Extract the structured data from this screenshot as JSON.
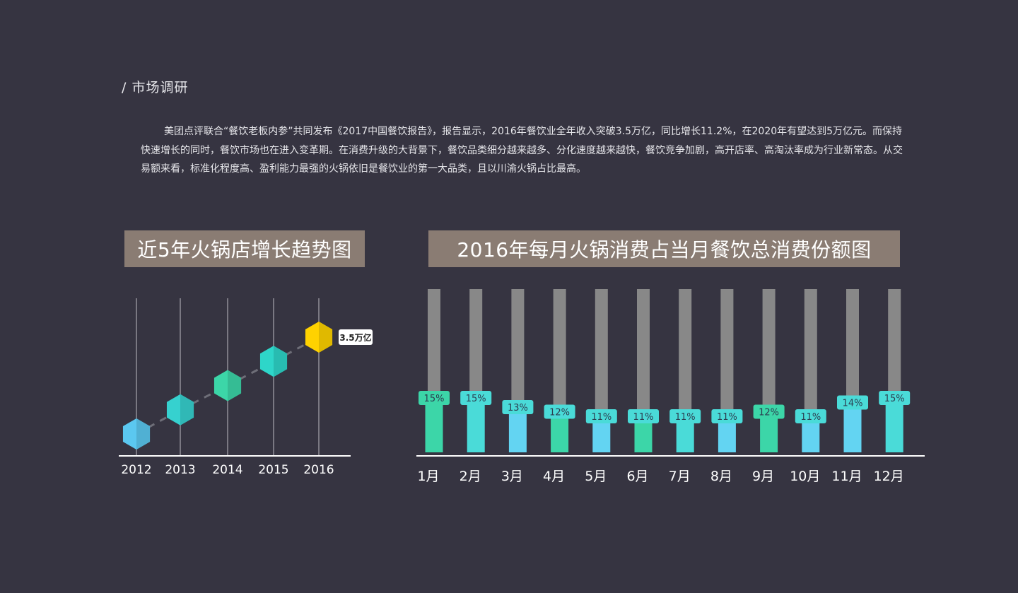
{
  "section_title": "/ 市场调研",
  "intro_text": "美团点评联合“餐饮老板内参”共同发布《2017中国餐饮报告》，报告显示，2016年餐饮业全年收入突破3.5万亿，同比增长11.2%，在2020年有望达到5万亿元。而保持快速增长的同时，餐饮市场也在进入变革期。在消费升级的大背景下，餐饮品类细分越来越多、分化速度越来越快，餐饮竞争加剧，高开店率、高淘汰率成为行业新常态。从交易额来看，标准化程度高、盈利能力最强的火锅依旧是餐饮业的第一大品类，且以川渝火锅占比最高。",
  "left_chart_title": "近5年火锅店增长趋势图",
  "right_chart_title": "2016年每月火锅消费占当月餐饮总消费份额图",
  "colors": {
    "background": "#363441",
    "banner": "#8a7c73",
    "track": "#888888",
    "highlight": "#FFD200"
  },
  "chart_data": [
    {
      "type": "line",
      "title": "近5年火锅店增长趋势图",
      "categories": [
        "2012",
        "2013",
        "2014",
        "2015",
        "2016"
      ],
      "values": [
        1,
        2,
        3,
        4,
        5
      ],
      "marker": "hexagon",
      "marker_colors": [
        "#5BC8F0",
        "#36D1CF",
        "#3CD6A8",
        "#2ED6C9",
        "#FFD200"
      ],
      "annotation": "3.5万亿"
    },
    {
      "type": "bar",
      "title": "2016年每月火锅消费占当月餐饮总消费份额图",
      "categories": [
        "1月",
        "2月",
        "3月",
        "4月",
        "5月",
        "6月",
        "7月",
        "8月",
        "9月",
        "10月",
        "11月",
        "12月"
      ],
      "values": [
        15,
        15,
        13,
        12,
        11,
        11,
        11,
        11,
        12,
        11,
        14,
        15
      ],
      "value_labels": [
        "15%",
        "15%",
        "13%",
        "12%",
        "11%",
        "11%",
        "11%",
        "11%",
        "12%",
        "11%",
        "14%",
        "15%"
      ],
      "bar_colors": [
        "#3CD6A8",
        "#4ADBD8",
        "#63D4F2",
        "#3CD6A8",
        "#63D4F2",
        "#3CD6A8",
        "#4ADBD8",
        "#63D4F2",
        "#3CD6A8",
        "#63D4F2",
        "#63D4F2",
        "#4ADBD8"
      ],
      "label_colors": [
        "#3CD6A8",
        "#4ADBD8",
        "#4ADBD8",
        "#4ADBD8",
        "#4ADBD8",
        "#4ADBD8",
        "#4ADBD8",
        "#4ADBD8",
        "#3CD6A8",
        "#4ADBD8",
        "#4ADBD8",
        "#4ADBD8"
      ]
    }
  ]
}
